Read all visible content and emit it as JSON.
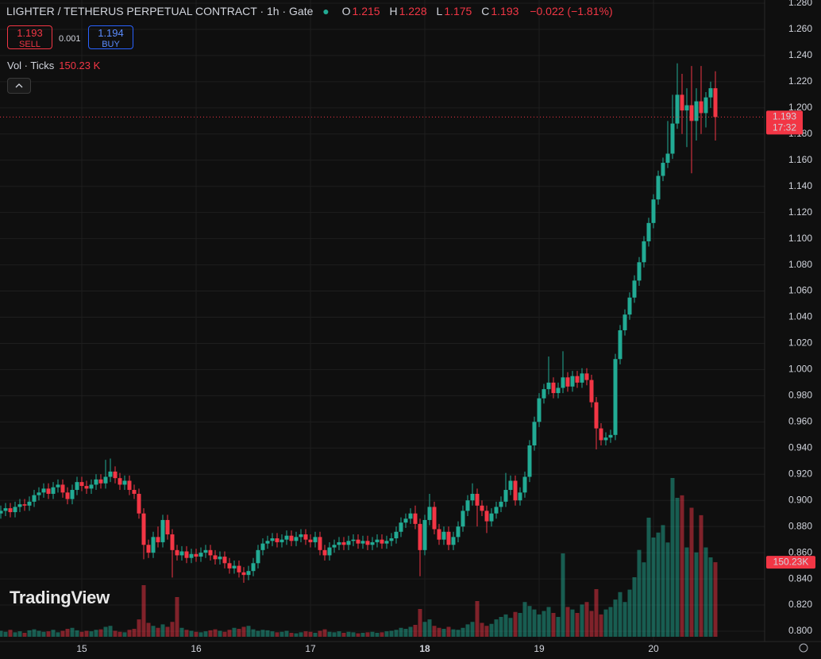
{
  "chart_data": {
    "type": "candlestick",
    "title": "LIGHTER / TETHERUS PERPETUAL CONTRACT · 1h · Gate",
    "ohlc_keys": [
      "O",
      "H",
      "L",
      "C"
    ],
    "change": "−0.022 (−1.81%)",
    "sell_price": "1.193",
    "sell_label": "SELL",
    "spread": "0.001",
    "buy_price": "1.194",
    "buy_label": "BUY",
    "volume_title": "Vol · Ticks",
    "volume_value_label": "150.23 K",
    "volume_axis_label": "150.23K",
    "countdown": "17:32",
    "logo": "TradingView",
    "up_color": "#22ab94",
    "down_color": "#f23645",
    "ylim": [
      0.8,
      1.28
    ],
    "yticks": [
      {
        "value": 0.8,
        "label": "0.800"
      },
      {
        "value": 0.82,
        "label": "0.820"
      },
      {
        "value": 0.84,
        "label": "0.840"
      },
      {
        "value": 0.86,
        "label": "0.860"
      },
      {
        "value": 0.88,
        "label": "0.880"
      },
      {
        "value": 0.9,
        "label": "0.900"
      },
      {
        "value": 0.92,
        "label": "0.920"
      },
      {
        "value": 0.94,
        "label": "0.940"
      },
      {
        "value": 0.96,
        "label": "0.960"
      },
      {
        "value": 0.98,
        "label": "0.980"
      },
      {
        "value": 1.0,
        "label": "1.000"
      },
      {
        "value": 1.02,
        "label": "1.020"
      },
      {
        "value": 1.04,
        "label": "1.040"
      },
      {
        "value": 1.06,
        "label": "1.060"
      },
      {
        "value": 1.08,
        "label": "1.080"
      },
      {
        "value": 1.1,
        "label": "1.100"
      },
      {
        "value": 1.12,
        "label": "1.120"
      },
      {
        "value": 1.14,
        "label": "1.140"
      },
      {
        "value": 1.16,
        "label": "1.160"
      },
      {
        "value": 1.18,
        "label": "1.180"
      },
      {
        "value": 1.2,
        "label": "1.200"
      },
      {
        "value": 1.22,
        "label": "1.220"
      },
      {
        "value": 1.24,
        "label": "1.240"
      },
      {
        "value": 1.26,
        "label": "1.260"
      },
      {
        "value": 1.28,
        "label": "1.280"
      }
    ],
    "xticks": [
      {
        "value": 17,
        "label": "15"
      },
      {
        "value": 41,
        "label": "16"
      },
      {
        "value": 65,
        "label": "17"
      },
      {
        "value": 89,
        "label": "18"
      },
      {
        "value": 113,
        "label": "19"
      },
      {
        "value": 137,
        "label": "20"
      }
    ],
    "grid": true,
    "open": [
      0.89,
      0.892,
      0.894,
      0.891,
      0.895,
      0.897,
      0.896,
      0.899,
      0.904,
      0.906,
      0.909,
      0.905,
      0.91,
      0.912,
      0.906,
      0.901,
      0.908,
      0.914,
      0.911,
      0.909,
      0.912,
      0.916,
      0.913,
      0.918,
      0.922,
      0.917,
      0.912,
      0.915,
      0.908,
      0.905,
      0.89,
      0.866,
      0.86,
      0.872,
      0.868,
      0.885,
      0.874,
      0.862,
      0.858,
      0.861,
      0.856,
      0.859,
      0.857,
      0.86,
      0.862,
      0.858,
      0.855,
      0.857,
      0.852,
      0.848,
      0.85,
      0.845,
      0.843,
      0.846,
      0.852,
      0.862,
      0.867,
      0.869,
      0.871,
      0.868,
      0.87,
      0.873,
      0.869,
      0.872,
      0.874,
      0.87,
      0.868,
      0.872,
      0.862,
      0.858,
      0.864,
      0.866,
      0.868,
      0.866,
      0.869,
      0.87,
      0.867,
      0.869,
      0.866,
      0.868,
      0.87,
      0.867,
      0.869,
      0.871,
      0.876,
      0.883,
      0.886,
      0.89,
      0.882,
      0.862,
      0.885,
      0.895,
      0.878,
      0.87,
      0.876,
      0.866,
      0.872,
      0.88,
      0.892,
      0.9,
      0.905,
      0.896,
      0.892,
      0.884,
      0.89,
      0.895,
      0.899,
      0.908,
      0.915,
      0.9,
      0.906,
      0.918,
      0.942,
      0.96,
      0.978,
      0.985,
      0.99,
      0.982,
      0.986,
      0.994,
      0.987,
      0.995,
      0.99,
      0.997,
      0.992,
      0.975,
      0.955,
      0.946,
      0.948,
      0.95,
      1.008,
      1.03,
      1.042,
      1.055,
      1.068,
      1.082,
      1.098,
      1.112,
      1.13,
      1.148,
      1.158,
      1.165,
      1.188,
      1.21,
      1.198,
      1.202,
      1.19,
      1.205,
      1.196,
      1.208,
      1.215
    ],
    "high": [
      0.896,
      0.898,
      0.898,
      0.899,
      0.901,
      0.901,
      0.903,
      0.908,
      0.91,
      0.913,
      0.913,
      0.914,
      0.916,
      0.916,
      0.91,
      0.912,
      0.918,
      0.918,
      0.915,
      0.916,
      0.92,
      0.92,
      0.931,
      0.932,
      0.926,
      0.921,
      0.919,
      0.919,
      0.912,
      0.909,
      0.894,
      0.87,
      0.876,
      0.88,
      0.889,
      0.889,
      0.878,
      0.866,
      0.865,
      0.865,
      0.863,
      0.863,
      0.864,
      0.866,
      0.866,
      0.862,
      0.861,
      0.861,
      0.856,
      0.854,
      0.854,
      0.849,
      0.85,
      0.856,
      0.866,
      0.871,
      0.873,
      0.875,
      0.875,
      0.874,
      0.877,
      0.877,
      0.876,
      0.878,
      0.878,
      0.874,
      0.876,
      0.876,
      0.866,
      0.868,
      0.87,
      0.872,
      0.872,
      0.873,
      0.874,
      0.874,
      0.873,
      0.873,
      0.872,
      0.874,
      0.874,
      0.873,
      0.875,
      0.88,
      0.887,
      0.89,
      0.894,
      0.896,
      0.886,
      0.889,
      0.905,
      0.899,
      0.882,
      0.88,
      0.88,
      0.876,
      0.884,
      0.896,
      0.904,
      0.913,
      0.909,
      0.9,
      0.896,
      0.894,
      0.899,
      0.903,
      0.921,
      0.919,
      0.919,
      0.91,
      0.922,
      0.946,
      0.964,
      0.982,
      0.989,
      1.01,
      0.994,
      0.99,
      1.014,
      0.998,
      0.999,
      0.999,
      1.001,
      1.001,
      0.996,
      0.979,
      0.959,
      0.952,
      0.954,
      1.012,
      1.034,
      1.046,
      1.059,
      1.072,
      1.086,
      1.102,
      1.116,
      1.134,
      1.152,
      1.162,
      1.19,
      1.21,
      1.234,
      1.226,
      1.215,
      1.232,
      1.215,
      1.232,
      1.212,
      1.22,
      1.228
    ],
    "low": [
      0.886,
      0.888,
      0.887,
      0.887,
      0.891,
      0.892,
      0.892,
      0.895,
      0.9,
      0.902,
      0.901,
      0.901,
      0.906,
      0.902,
      0.897,
      0.897,
      0.904,
      0.907,
      0.905,
      0.905,
      0.908,
      0.909,
      0.909,
      0.914,
      0.913,
      0.908,
      0.908,
      0.904,
      0.901,
      0.886,
      0.855,
      0.856,
      0.856,
      0.864,
      0.864,
      0.87,
      0.841,
      0.854,
      0.854,
      0.852,
      0.852,
      0.853,
      0.853,
      0.856,
      0.854,
      0.851,
      0.851,
      0.848,
      0.844,
      0.844,
      0.841,
      0.837,
      0.839,
      0.842,
      0.848,
      0.858,
      0.863,
      0.865,
      0.864,
      0.864,
      0.866,
      0.865,
      0.865,
      0.868,
      0.866,
      0.864,
      0.864,
      0.858,
      0.854,
      0.854,
      0.86,
      0.862,
      0.862,
      0.862,
      0.865,
      0.863,
      0.863,
      0.862,
      0.862,
      0.864,
      0.863,
      0.863,
      0.865,
      0.867,
      0.872,
      0.879,
      0.882,
      0.878,
      0.842,
      0.858,
      0.881,
      0.874,
      0.866,
      0.866,
      0.862,
      0.862,
      0.868,
      0.876,
      0.888,
      0.896,
      0.88,
      0.888,
      0.875,
      0.88,
      0.886,
      0.891,
      0.895,
      0.904,
      0.896,
      0.896,
      0.902,
      0.914,
      0.938,
      0.956,
      0.974,
      0.981,
      0.978,
      0.978,
      0.982,
      0.983,
      0.983,
      0.986,
      0.986,
      0.988,
      0.971,
      0.939,
      0.942,
      0.942,
      0.944,
      0.946,
      1.004,
      1.026,
      1.038,
      1.051,
      1.064,
      1.078,
      1.094,
      1.108,
      1.126,
      1.144,
      1.154,
      1.161,
      1.184,
      1.18,
      1.17,
      1.15,
      1.175,
      1.18,
      1.185,
      1.2,
      1.175
    ],
    "close": [
      0.892,
      0.894,
      0.891,
      0.895,
      0.897,
      0.896,
      0.899,
      0.904,
      0.906,
      0.909,
      0.905,
      0.91,
      0.912,
      0.906,
      0.901,
      0.908,
      0.914,
      0.911,
      0.909,
      0.912,
      0.916,
      0.913,
      0.918,
      0.922,
      0.917,
      0.912,
      0.915,
      0.908,
      0.905,
      0.89,
      0.866,
      0.86,
      0.872,
      0.868,
      0.885,
      0.874,
      0.862,
      0.858,
      0.861,
      0.856,
      0.859,
      0.857,
      0.86,
      0.862,
      0.858,
      0.855,
      0.857,
      0.852,
      0.848,
      0.85,
      0.845,
      0.843,
      0.846,
      0.852,
      0.862,
      0.867,
      0.869,
      0.871,
      0.868,
      0.87,
      0.873,
      0.869,
      0.872,
      0.874,
      0.87,
      0.868,
      0.872,
      0.862,
      0.858,
      0.864,
      0.866,
      0.868,
      0.866,
      0.869,
      0.87,
      0.867,
      0.869,
      0.866,
      0.868,
      0.87,
      0.867,
      0.869,
      0.871,
      0.876,
      0.883,
      0.886,
      0.89,
      0.882,
      0.862,
      0.885,
      0.895,
      0.878,
      0.87,
      0.876,
      0.866,
      0.872,
      0.88,
      0.892,
      0.9,
      0.905,
      0.896,
      0.892,
      0.884,
      0.89,
      0.895,
      0.899,
      0.908,
      0.915,
      0.9,
      0.906,
      0.918,
      0.942,
      0.96,
      0.978,
      0.985,
      0.99,
      0.982,
      0.986,
      0.994,
      0.987,
      0.995,
      0.99,
      0.997,
      0.992,
      0.975,
      0.955,
      0.946,
      0.948,
      0.95,
      1.008,
      1.03,
      1.042,
      1.055,
      1.068,
      1.082,
      1.098,
      1.112,
      1.13,
      1.148,
      1.158,
      1.165,
      1.188,
      1.21,
      1.198,
      1.202,
      1.19,
      1.205,
      1.196,
      1.208,
      1.215,
      1.193
    ],
    "volume": [
      12,
      10,
      14,
      9,
      11,
      8,
      13,
      15,
      12,
      10,
      11,
      14,
      9,
      12,
      16,
      18,
      13,
      10,
      12,
      11,
      14,
      15,
      20,
      22,
      12,
      10,
      9,
      14,
      16,
      35,
      104,
      28,
      22,
      18,
      25,
      20,
      30,
      80,
      18,
      14,
      12,
      10,
      9,
      11,
      13,
      15,
      12,
      10,
      14,
      18,
      16,
      20,
      22,
      15,
      12,
      14,
      13,
      11,
      9,
      10,
      12,
      8,
      7,
      9,
      11,
      10,
      8,
      12,
      15,
      10,
      9,
      11,
      8,
      10,
      9,
      7,
      8,
      9,
      10,
      8,
      9,
      11,
      12,
      14,
      18,
      16,
      20,
      24,
      56,
      30,
      35,
      22,
      18,
      16,
      20,
      15,
      14,
      18,
      25,
      30,
      72,
      28,
      22,
      26,
      35,
      40,
      45,
      38,
      50,
      48,
      70,
      62,
      55,
      45,
      52,
      60,
      48,
      40,
      168,
      60,
      55,
      48,
      65,
      70,
      52,
      96,
      45,
      55,
      60,
      75,
      90,
      70,
      95,
      120,
      175,
      150,
      240,
      200,
      210,
      225,
      190,
      320,
      280,
      285,
      180,
      260,
      170,
      245,
      180,
      160,
      150.23
    ]
  }
}
